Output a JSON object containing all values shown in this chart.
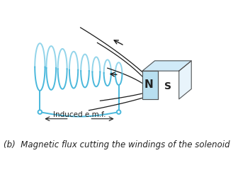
{
  "bg_color": "#ffffff",
  "solenoid_color": "#4ab8dc",
  "magnet_face_color": "#b8dff0",
  "magnet_top_color": "#d0eaf8",
  "magnet_side_color": "#e8f4fb",
  "magnet_outline": "#555555",
  "flux_color": "#1a1a1a",
  "text_color": "#222222",
  "caption": "(b)  Magnetic flux cutting the windings of the solenoid",
  "caption_fontsize": 8.5,
  "emf_label": "Induced e.m.f.",
  "emf_fontsize": 7.5,
  "magnet_N_label": "N",
  "magnet_S_label": "S"
}
